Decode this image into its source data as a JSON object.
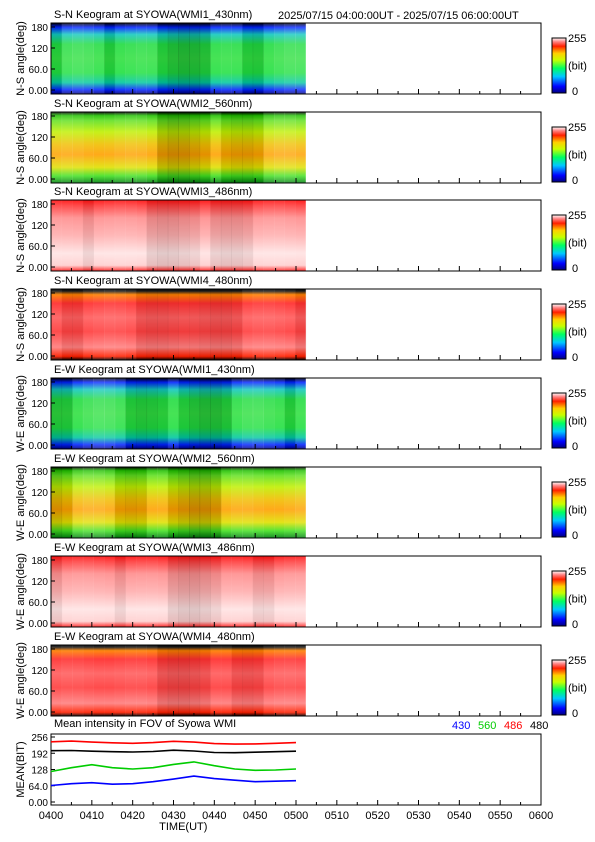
{
  "header": {
    "time_range": "2025/07/15 04:00:00UT - 2025/07/15 06:00:00UT"
  },
  "colorbar": {
    "max": "255",
    "min": "0",
    "unit": "(bit)"
  },
  "keograms": [
    {
      "title": "S-N Keogram at SYOWA(WMI1_430nm)",
      "ylabel": "N-S angle(deg)",
      "yticks": [
        "180",
        "120",
        "60.0",
        "0.00"
      ],
      "colormap": "green",
      "base": 0.5
    },
    {
      "title": "S-N Keogram at SYOWA(WMI2_560nm)",
      "ylabel": "N-S angle(deg)",
      "yticks": [
        "180",
        "120",
        "60.0",
        "0.00"
      ],
      "colormap": "yellow",
      "base": 0.68
    },
    {
      "title": "S-N Keogram at SYOWA(WMI3_486nm)",
      "ylabel": "N-S angle(deg)",
      "yticks": [
        "180",
        "120",
        "60.0",
        "0.00"
      ],
      "colormap": "pink",
      "base": 0.93
    },
    {
      "title": "S-N Keogram at SYOWA(WMI4_480nm)",
      "ylabel": "N-S angle(deg)",
      "yticks": [
        "180",
        "120",
        "60.0",
        "0.00"
      ],
      "colormap": "red",
      "base": 0.9
    },
    {
      "title": "E-W Keogram at SYOWA(WMI1_430nm)",
      "ylabel": "W-E angle(deg)",
      "yticks": [
        "180",
        "120",
        "60.0",
        "0.00"
      ],
      "colormap": "green",
      "base": 0.5
    },
    {
      "title": "E-W Keogram at SYOWA(WMI2_560nm)",
      "ylabel": "W-E angle(deg)",
      "yticks": [
        "180",
        "120",
        "60.0",
        "0.00"
      ],
      "colormap": "yellow",
      "base": 0.66
    },
    {
      "title": "E-W Keogram at SYOWA(WMI3_486nm)",
      "ylabel": "W-E angle(deg)",
      "yticks": [
        "180",
        "120",
        "60.0",
        "0.00"
      ],
      "colormap": "pink",
      "base": 0.93
    },
    {
      "title": "E-W Keogram at SYOWA(WMI4_480nm)",
      "ylabel": "W-E angle(deg)",
      "yticks": [
        "180",
        "120",
        "60.0",
        "0.00"
      ],
      "colormap": "red",
      "base": 0.9
    }
  ],
  "chart_data": {
    "type": "line",
    "title": "Mean intensity in FOV of Syowa WMI",
    "xlabel": "TIME(UT)",
    "ylabel": "MEAN(BIT)",
    "ylim": [
      0,
      256
    ],
    "yticks": [
      "256",
      "192",
      "128",
      "64.0",
      "0.00"
    ],
    "xticks": [
      "0400",
      "0410",
      "0420",
      "0430",
      "0440",
      "0450",
      "0500",
      "0510",
      "0520",
      "0530",
      "0540",
      "0550",
      "0600"
    ],
    "x": [
      "0400",
      "0405",
      "0410",
      "0415",
      "0420",
      "0425",
      "0430",
      "0435",
      "0440",
      "0445",
      "0450",
      "0455",
      "0500"
    ],
    "series": [
      {
        "name": "430",
        "color": "#0000ff",
        "values": [
          65,
          72,
          76,
          70,
          72,
          80,
          90,
          102,
          92,
          86,
          80,
          82,
          84
        ]
      },
      {
        "name": "560",
        "color": "#00cc00",
        "values": [
          120,
          135,
          147,
          135,
          130,
          135,
          148,
          158,
          143,
          130,
          125,
          126,
          130
        ]
      },
      {
        "name": "486",
        "color": "#ff0000",
        "values": [
          237,
          240,
          236,
          233,
          231,
          234,
          239,
          236,
          230,
          228,
          229,
          231,
          234
        ]
      },
      {
        "name": "480",
        "color": "#000000",
        "values": [
          202,
          203,
          200,
          198,
          197,
          199,
          204,
          201,
          195,
          194,
          196,
          198,
          200
        ]
      }
    ]
  }
}
